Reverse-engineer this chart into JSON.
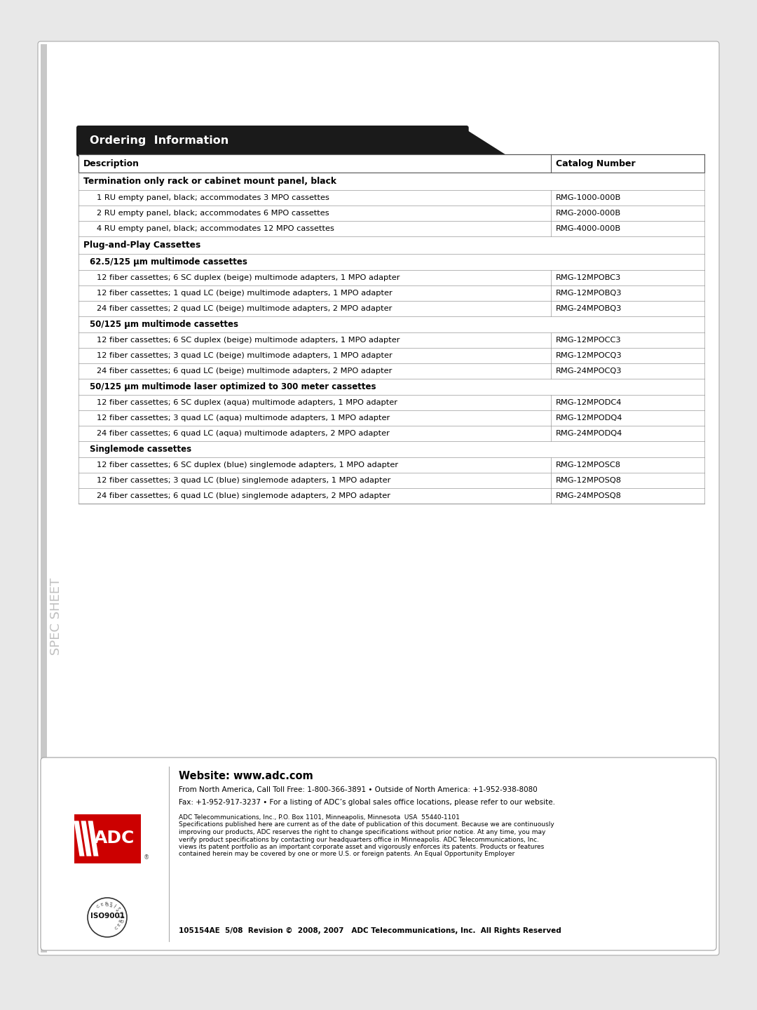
{
  "page_bg": "#e8e8e8",
  "content_bg": "#ffffff",
  "header_bg": "#1a1a1a",
  "header_text": "Ordering  Information",
  "header_text_color": "#ffffff",
  "col1_header": "Description",
  "col2_header": "Catalog Number",
  "border_color": "#999999",
  "rows": [
    {
      "type": "section",
      "text": "Termination only rack or cabinet mount panel, black",
      "catalog": ""
    },
    {
      "type": "row",
      "text": "1 RU empty panel, black; accommodates 3 MPO cassettes",
      "catalog": "RMG-1000-000B"
    },
    {
      "type": "row",
      "text": "2 RU empty panel, black; accommodates 6 MPO cassettes",
      "catalog": "RMG-2000-000B"
    },
    {
      "type": "row",
      "text": "4 RU empty panel, black; accommodates 12 MPO cassettes",
      "catalog": "RMG-4000-000B"
    },
    {
      "type": "section",
      "text": "Plug-and-Play Cassettes",
      "catalog": ""
    },
    {
      "type": "subsection",
      "text": "62.5/125 µm multimode cassettes",
      "catalog": ""
    },
    {
      "type": "row",
      "text": "12 fiber cassettes; 6 SC duplex (beige) multimode adapters, 1 MPO adapter",
      "catalog": "RMG-12MPOBC3"
    },
    {
      "type": "row",
      "text": "12 fiber cassettes; 1 quad LC (beige) multimode adapters, 1 MPO adapter",
      "catalog": "RMG-12MPOBQ3"
    },
    {
      "type": "row",
      "text": "24 fiber cassettes; 2 quad LC (beige) multimode adapters, 2 MPO adapter",
      "catalog": "RMG-24MPOBQ3"
    },
    {
      "type": "subsection",
      "text": "50/125 µm multimode cassettes",
      "catalog": ""
    },
    {
      "type": "row",
      "text": "12 fiber cassettes; 6 SC duplex (beige) multimode adapters, 1 MPO adapter",
      "catalog": "RMG-12MPOCC3"
    },
    {
      "type": "row",
      "text": "12 fiber cassettes; 3 quad LC (beige) multimode adapters, 1 MPO adapter",
      "catalog": "RMG-12MPOCQ3"
    },
    {
      "type": "row",
      "text": "24 fiber cassettes; 6 quad LC (beige) multimode adapters, 2 MPO adapter",
      "catalog": "RMG-24MPOCQ3"
    },
    {
      "type": "subsection",
      "text": "50/125 µm multimode laser optimized to 300 meter cassettes",
      "catalog": ""
    },
    {
      "type": "row",
      "text": "12 fiber cassettes; 6 SC duplex (aqua) multimode adapters, 1 MPO adapter",
      "catalog": "RMG-12MPODC4"
    },
    {
      "type": "row",
      "text": "12 fiber cassettes; 3 quad LC (aqua) multimode adapters, 1 MPO adapter",
      "catalog": "RMG-12MPODQ4"
    },
    {
      "type": "row",
      "text": "24 fiber cassettes; 6 quad LC (aqua) multimode adapters, 2 MPO adapter",
      "catalog": "RMG-24MPODQ4"
    },
    {
      "type": "subsection",
      "text": "Singlemode cassettes",
      "catalog": ""
    },
    {
      "type": "row",
      "text": "12 fiber cassettes; 6 SC duplex (blue) singlemode adapters, 1 MPO adapter",
      "catalog": "RMG-12MPOSC8"
    },
    {
      "type": "row",
      "text": "12 fiber cassettes; 3 quad LC (blue) singlemode adapters, 1 MPO adapter",
      "catalog": "RMG-12MPOSQ8"
    },
    {
      "type": "row",
      "text": "24 fiber cassettes; 6 quad LC (blue) singlemode adapters, 2 MPO adapter",
      "catalog": "RMG-24MPOSQ8"
    }
  ],
  "footer_website_bold": "Website: www.adc.com",
  "footer_line1": "From North America, Call Toll Free: 1-800-366-3891 • Outside of North America: +1-952-938-8080",
  "footer_line2": "Fax: +1-952-917-3237 • For a listing of ADC’s global sales office locations, please refer to our website.",
  "footer_body_lines": [
    "ADC Telecommunications, Inc., P.O. Box 1101, Minneapolis, Minnesota  USA  55440-1101",
    "Specifications published here are current as of the date of publication of this document. Because we are continuously",
    "improving our products, ADC reserves the right to change specifications without prior notice. At any time, you may",
    "verify product specifications by contacting our headquarters office in Minneapolis. ADC Telecommunications, Inc.",
    "views its patent portfolio as an important corporate asset and vigorously enforces its patents. Products or features",
    "contained herein may be covered by one or more U.S. or foreign patents. An Equal Opportunity Employer"
  ],
  "footer_revision": "105154AE  5/08  Revision ©  2008, 2007   ADC Telecommunications, Inc.  All Rights Reserved",
  "spec_sheet_text": "SPEC SHEET",
  "adc_logo_red": "#cc0000"
}
